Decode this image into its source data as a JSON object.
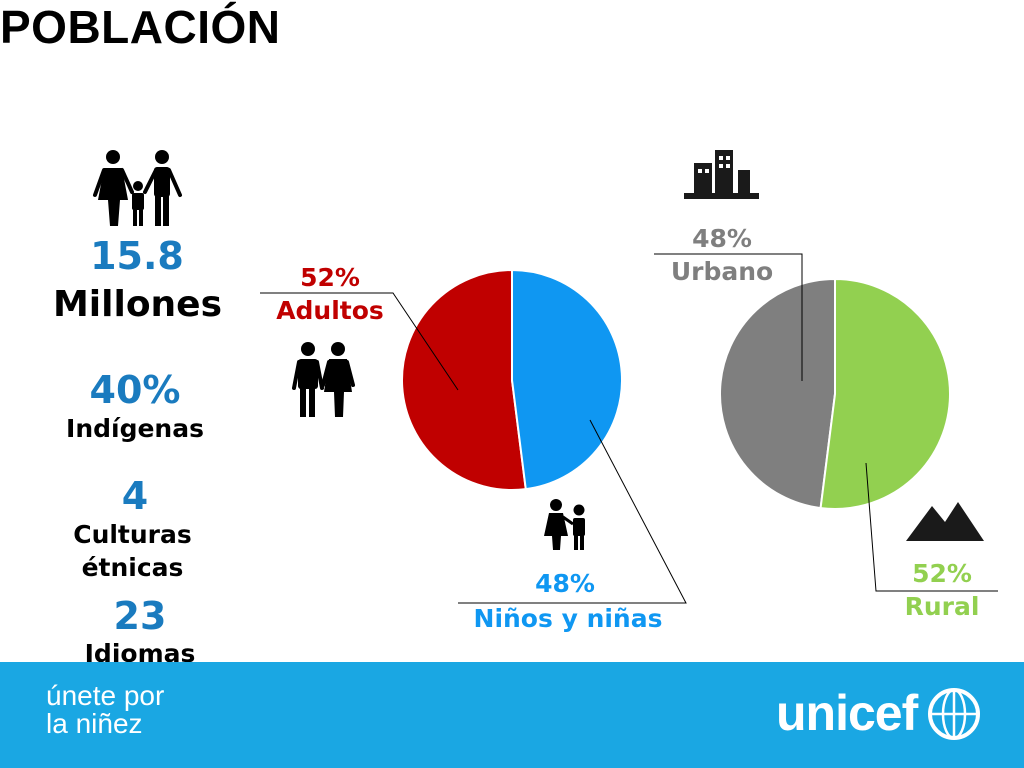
{
  "title": "POBLACIÓN",
  "stats": {
    "total_value": "15.8",
    "total_unit": "Millones",
    "indigenous_value": "40%",
    "indigenous_label": "Indígenas",
    "cultures_value": "4",
    "cultures_label_line1": "Culturas",
    "cultures_label_line2": "étnicas",
    "languages_value": "23",
    "languages_label": "Idiomas"
  },
  "labels": {
    "adults_pct": "52%",
    "adults_name": "Adultos",
    "children_pct": "48%",
    "children_name": "Niños y niñas",
    "urban_pct": "48%",
    "urban_name": "Urbano",
    "rural_pct": "52%",
    "rural_name": "Rural"
  },
  "colors": {
    "adults": "#c00000",
    "children": "#0f97f2",
    "urban": "#7f7f7f",
    "rural": "#92d050",
    "stat_blue": "#1a7bbf",
    "footer": "#1aa7e3"
  },
  "icons": [
    "family-icon",
    "adults-icon",
    "children-icon",
    "city-icon",
    "mountain-icon",
    "globe-icon"
  ],
  "footer": {
    "tagline": "únete por\nla niñez",
    "logo": "unicef"
  },
  "chart_data": [
    {
      "type": "pie",
      "categories": [
        "Adultos",
        "Niños y niñas"
      ],
      "values": [
        52,
        48
      ]
    },
    {
      "type": "pie",
      "categories": [
        "Urbano",
        "Rural"
      ],
      "values": [
        48,
        52
      ]
    }
  ]
}
